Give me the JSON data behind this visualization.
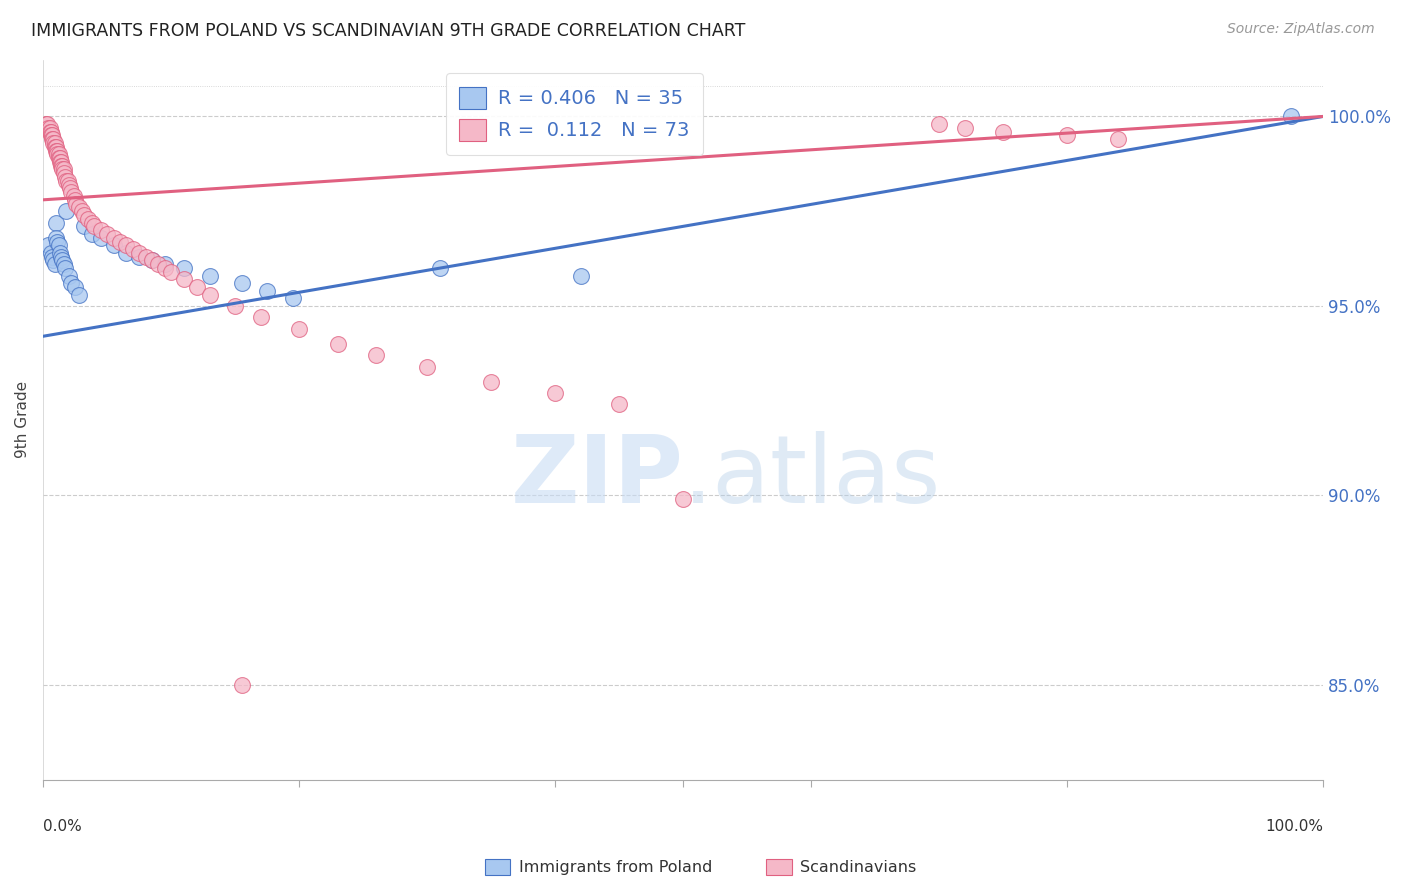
{
  "title": "IMMIGRANTS FROM POLAND VS SCANDINAVIAN 9TH GRADE CORRELATION CHART",
  "source": "Source: ZipAtlas.com",
  "ylabel": "9th Grade",
  "legend_label1": "Immigrants from Poland",
  "legend_label2": "Scandinavians",
  "R1": 0.406,
  "N1": 35,
  "R2": 0.112,
  "N2": 73,
  "color_blue": "#A8C8F0",
  "color_pink": "#F5B8C8",
  "line_color_blue": "#4472C4",
  "line_color_pink": "#E06080",
  "xlim": [
    0.0,
    1.0
  ],
  "ylim": [
    0.825,
    1.015
  ],
  "yticks": [
    0.85,
    0.9,
    0.95,
    1.0
  ],
  "ytick_labels": [
    "85.0%",
    "90.0%",
    "95.0%",
    "100.0%"
  ],
  "poland_x": [
    0.004,
    0.006,
    0.007,
    0.008,
    0.009,
    0.01,
    0.01,
    0.011,
    0.012,
    0.013,
    0.014,
    0.015,
    0.016,
    0.017,
    0.018,
    0.02,
    0.022,
    0.025,
    0.028,
    0.032,
    0.038,
    0.045,
    0.055,
    0.065,
    0.075,
    0.085,
    0.095,
    0.11,
    0.13,
    0.155,
    0.175,
    0.195,
    0.31,
    0.42,
    0.975
  ],
  "poland_y": [
    0.966,
    0.964,
    0.963,
    0.962,
    0.961,
    0.972,
    0.968,
    0.967,
    0.966,
    0.964,
    0.963,
    0.962,
    0.961,
    0.96,
    0.975,
    0.958,
    0.956,
    0.955,
    0.953,
    0.971,
    0.969,
    0.968,
    0.966,
    0.964,
    0.963,
    0.962,
    0.961,
    0.96,
    0.958,
    0.956,
    0.954,
    0.952,
    0.96,
    0.958,
    1.0
  ],
  "scandinavian_x": [
    0.002,
    0.003,
    0.004,
    0.005,
    0.005,
    0.006,
    0.006,
    0.007,
    0.007,
    0.008,
    0.008,
    0.009,
    0.009,
    0.01,
    0.01,
    0.011,
    0.011,
    0.012,
    0.012,
    0.013,
    0.013,
    0.014,
    0.014,
    0.015,
    0.015,
    0.016,
    0.016,
    0.017,
    0.018,
    0.019,
    0.02,
    0.021,
    0.022,
    0.024,
    0.025,
    0.026,
    0.028,
    0.03,
    0.032,
    0.035,
    0.038,
    0.04,
    0.045,
    0.05,
    0.055,
    0.06,
    0.065,
    0.07,
    0.075,
    0.08,
    0.085,
    0.09,
    0.095,
    0.1,
    0.11,
    0.12,
    0.13,
    0.15,
    0.17,
    0.2,
    0.23,
    0.26,
    0.3,
    0.35,
    0.4,
    0.45,
    0.7,
    0.72,
    0.75,
    0.8,
    0.84,
    0.155,
    0.5
  ],
  "scandinavian_y": [
    0.998,
    0.998,
    0.997,
    0.997,
    0.996,
    0.996,
    0.995,
    0.995,
    0.994,
    0.994,
    0.993,
    0.993,
    0.992,
    0.992,
    0.991,
    0.991,
    0.99,
    0.99,
    0.989,
    0.989,
    0.988,
    0.988,
    0.987,
    0.987,
    0.986,
    0.986,
    0.985,
    0.984,
    0.983,
    0.983,
    0.982,
    0.981,
    0.98,
    0.979,
    0.978,
    0.977,
    0.976,
    0.975,
    0.974,
    0.973,
    0.972,
    0.971,
    0.97,
    0.969,
    0.968,
    0.967,
    0.966,
    0.965,
    0.964,
    0.963,
    0.962,
    0.961,
    0.96,
    0.959,
    0.957,
    0.955,
    0.953,
    0.95,
    0.947,
    0.944,
    0.94,
    0.937,
    0.934,
    0.93,
    0.927,
    0.924,
    0.998,
    0.997,
    0.996,
    0.995,
    0.994,
    0.85,
    0.899
  ],
  "trendline_blue_x0": 0.0,
  "trendline_blue_y0": 0.942,
  "trendline_blue_x1": 1.0,
  "trendline_blue_y1": 1.0,
  "trendline_pink_x0": 0.0,
  "trendline_pink_y0": 0.978,
  "trendline_pink_x1": 1.0,
  "trendline_pink_y1": 1.0
}
